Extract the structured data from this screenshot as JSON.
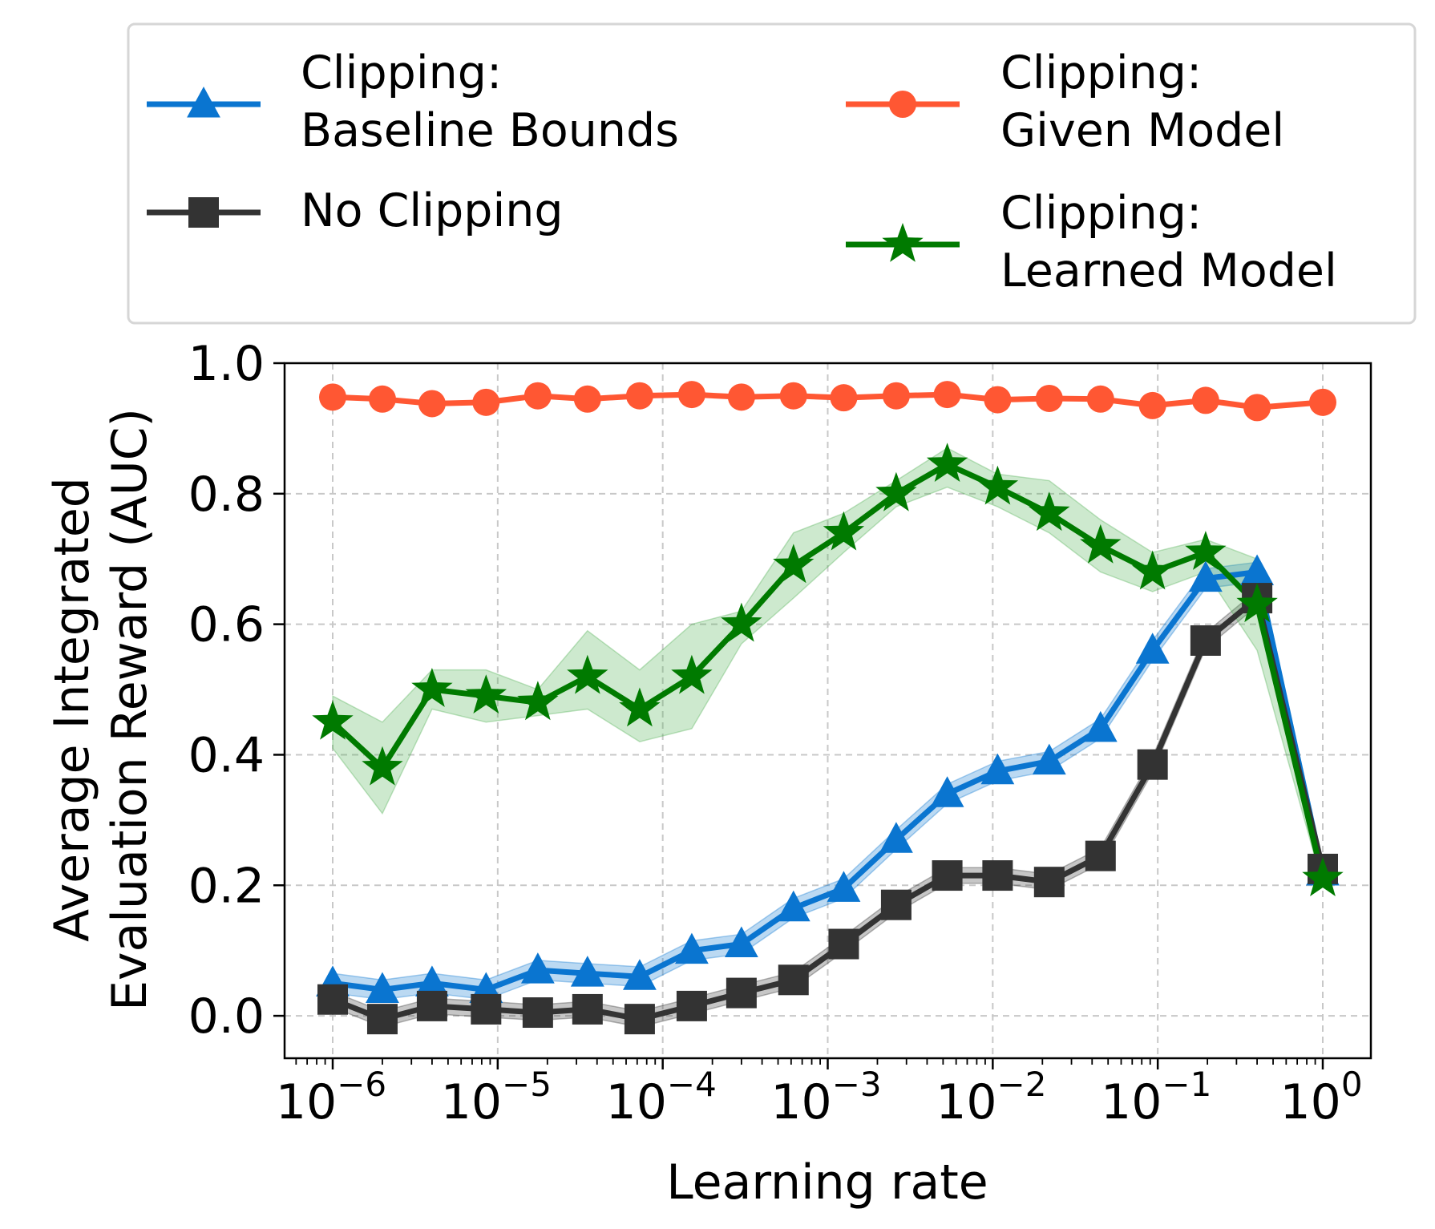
{
  "chart_data": {
    "type": "line",
    "title": "",
    "xlabel": "Learning rate",
    "ylabel_lines": [
      "Average Integrated",
      "Evaluation Reward (AUC)"
    ],
    "xscale": "log",
    "xlim_exp": [
      -6.25,
      0.3
    ],
    "ylim": [
      -0.065,
      1.0
    ],
    "grid": true,
    "legend_position": "top (above plot), 2 columns",
    "x_major_ticks": [
      {
        "base": "10",
        "exp": "−6"
      },
      {
        "base": "10",
        "exp": "−5"
      },
      {
        "base": "10",
        "exp": "−4"
      },
      {
        "base": "10",
        "exp": "−3"
      },
      {
        "base": "10",
        "exp": "−2"
      },
      {
        "base": "10",
        "exp": "−1"
      },
      {
        "base": "10",
        "exp": "0"
      }
    ],
    "y_ticks": [
      "0.0",
      "0.2",
      "0.4",
      "0.6",
      "0.8",
      "1.0"
    ],
    "y_tick_values": [
      0.0,
      0.2,
      0.4,
      0.6,
      0.8,
      1.0
    ],
    "x": [
      1e-06,
      2e-06,
      4e-06,
      8.5e-06,
      1.75e-05,
      3.5e-05,
      7.25e-05,
      0.00015,
      0.0003,
      0.00062,
      0.00125,
      0.0026,
      0.0053,
      0.0107,
      0.022,
      0.045,
      0.093,
      0.195,
      0.4,
      1.0
    ],
    "series": [
      {
        "name": "Clipping: Baseline Bounds",
        "legend_lines": [
          "Clipping:",
          "Baseline Bounds"
        ],
        "color": "#0a75d0",
        "marker": "triangle",
        "values": [
          0.05,
          0.04,
          0.05,
          0.04,
          0.07,
          0.065,
          0.06,
          0.1,
          0.11,
          0.165,
          0.195,
          0.27,
          0.34,
          0.375,
          0.39,
          0.44,
          0.56,
          0.67,
          0.68,
          0.22
        ],
        "band": 0.015
      },
      {
        "name": "No Clipping",
        "legend_lines": [
          "No Clipping"
        ],
        "color": "#333333",
        "marker": "square",
        "values": [
          0.025,
          -0.005,
          0.015,
          0.01,
          0.005,
          0.01,
          -0.005,
          0.015,
          0.035,
          0.055,
          0.11,
          0.17,
          0.215,
          0.215,
          0.205,
          0.245,
          0.385,
          0.575,
          0.64,
          0.225
        ],
        "band": 0.012
      },
      {
        "name": "Clipping: Given Model",
        "legend_lines": [
          "Clipping:",
          "Given Model"
        ],
        "color": "#ff5733",
        "marker": "circle",
        "values": [
          0.948,
          0.945,
          0.938,
          0.94,
          0.95,
          0.945,
          0.95,
          0.952,
          0.948,
          0.95,
          0.947,
          0.95,
          0.952,
          0.944,
          0.946,
          0.945,
          0.935,
          0.943,
          0.932,
          0.94
        ],
        "band": 0.0
      },
      {
        "name": "Clipping: Learned Model",
        "legend_lines": [
          "Clipping:",
          "Learned Model"
        ],
        "color": "#007a00",
        "band_color": "#4caf50",
        "marker": "star",
        "values": [
          0.45,
          0.38,
          0.5,
          0.49,
          0.48,
          0.52,
          0.47,
          0.52,
          0.6,
          0.69,
          0.74,
          0.8,
          0.845,
          0.81,
          0.77,
          0.72,
          0.68,
          0.71,
          0.63,
          0.21
        ],
        "band_lower": [
          0.41,
          0.31,
          0.47,
          0.45,
          0.46,
          0.47,
          0.42,
          0.44,
          0.57,
          0.64,
          0.71,
          0.78,
          0.81,
          0.78,
          0.74,
          0.68,
          0.65,
          0.68,
          0.56,
          0.2
        ],
        "band_upper": [
          0.49,
          0.45,
          0.53,
          0.53,
          0.5,
          0.59,
          0.53,
          0.6,
          0.62,
          0.74,
          0.77,
          0.82,
          0.87,
          0.83,
          0.82,
          0.76,
          0.71,
          0.73,
          0.7,
          0.22
        ]
      }
    ]
  }
}
